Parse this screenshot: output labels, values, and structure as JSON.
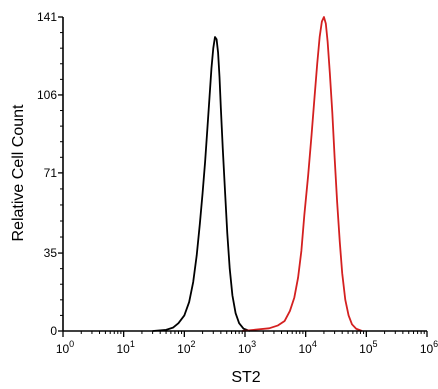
{
  "chart_data": {
    "type": "line",
    "title": "",
    "xlabel": "ST2",
    "ylabel": "Relative Cell Count",
    "x_scale": "log",
    "xlim": [
      1,
      1000000
    ],
    "ylim": [
      0,
      141
    ],
    "x_ticks": [
      {
        "base": "10",
        "exp": "0"
      },
      {
        "base": "10",
        "exp": "1"
      },
      {
        "base": "10",
        "exp": "2"
      },
      {
        "base": "10",
        "exp": "3"
      },
      {
        "base": "10",
        "exp": "4"
      },
      {
        "base": "10",
        "exp": "5"
      },
      {
        "base": "10",
        "exp": "6"
      }
    ],
    "y_ticks": [
      "0",
      "35",
      "71",
      "106",
      "141"
    ],
    "y_tick_values": [
      0,
      35,
      71,
      106,
      141
    ],
    "grid": false,
    "legend": "none",
    "series": [
      {
        "color": "#000000",
        "points": [
          [
            30,
            0
          ],
          [
            50,
            0.5
          ],
          [
            65,
            1.5
          ],
          [
            80,
            3.5
          ],
          [
            100,
            7
          ],
          [
            120,
            13
          ],
          [
            140,
            22
          ],
          [
            160,
            34
          ],
          [
            180,
            48
          ],
          [
            200,
            62
          ],
          [
            220,
            76
          ],
          [
            240,
            91
          ],
          [
            260,
            105
          ],
          [
            280,
            118
          ],
          [
            300,
            127
          ],
          [
            320,
            132
          ],
          [
            340,
            131
          ],
          [
            360,
            125
          ],
          [
            380,
            114
          ],
          [
            400,
            100
          ],
          [
            430,
            82
          ],
          [
            470,
            62
          ],
          [
            510,
            44
          ],
          [
            560,
            28
          ],
          [
            620,
            16
          ],
          [
            700,
            8
          ],
          [
            800,
            3.5
          ],
          [
            950,
            1
          ],
          [
            1200,
            0
          ]
        ]
      },
      {
        "color": "#d42020",
        "points": [
          [
            900,
            0
          ],
          [
            1500,
            0.6
          ],
          [
            2500,
            1.2
          ],
          [
            3500,
            2.5
          ],
          [
            4500,
            4.5
          ],
          [
            5500,
            9
          ],
          [
            6500,
            15
          ],
          [
            7500,
            24
          ],
          [
            8500,
            36
          ],
          [
            9500,
            52
          ],
          [
            11000,
            70
          ],
          [
            12500,
            88
          ],
          [
            14000,
            105
          ],
          [
            15500,
            120
          ],
          [
            17000,
            132
          ],
          [
            18500,
            139
          ],
          [
            20000,
            141
          ],
          [
            21500,
            138
          ],
          [
            23000,
            130
          ],
          [
            25000,
            116
          ],
          [
            27500,
            98
          ],
          [
            30000,
            78
          ],
          [
            33000,
            58
          ],
          [
            36500,
            40
          ],
          [
            40000,
            26
          ],
          [
            45000,
            14
          ],
          [
            51000,
            7
          ],
          [
            58000,
            3
          ],
          [
            68000,
            1
          ],
          [
            85000,
            0
          ]
        ]
      }
    ]
  }
}
